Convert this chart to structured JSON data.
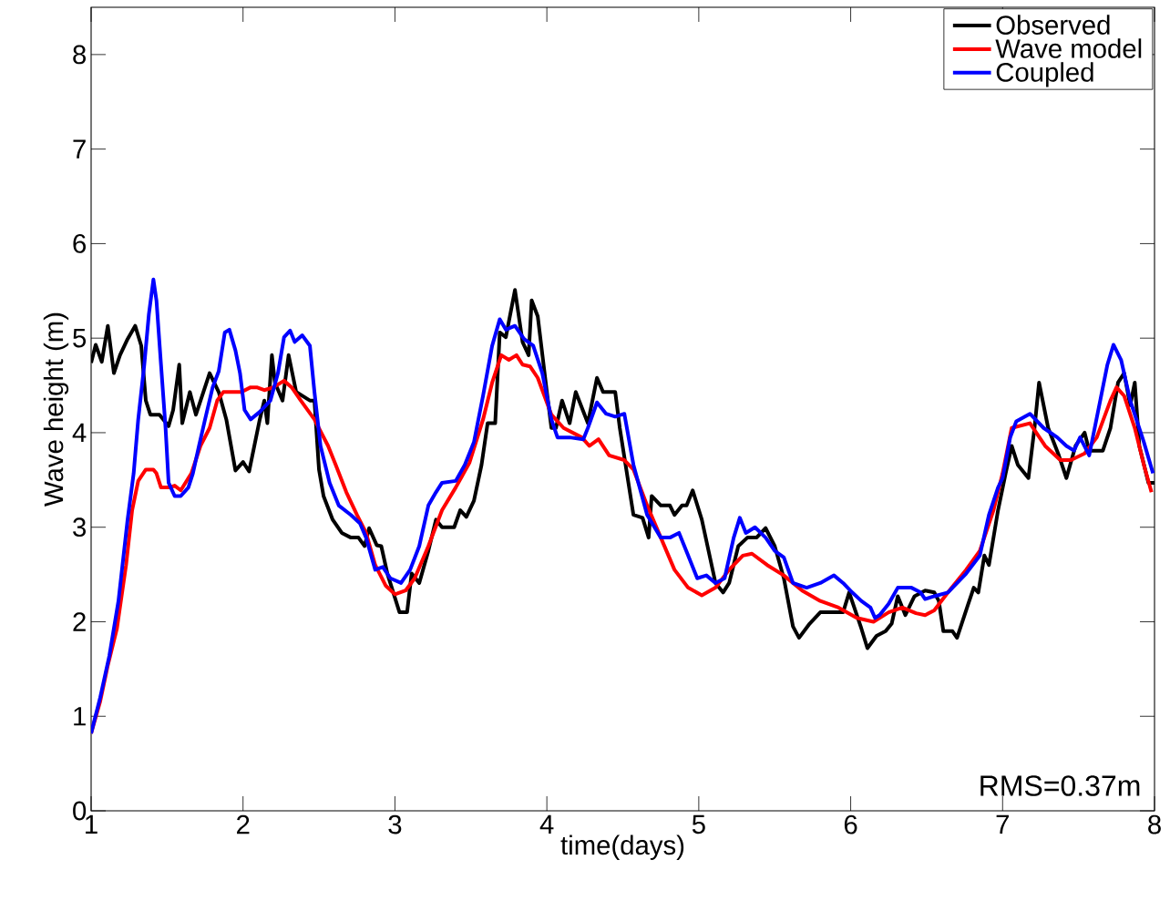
{
  "chart_data": {
    "type": "line",
    "xlabel": "time(days)",
    "ylabel": "Wave height (m)",
    "xlim": [
      1,
      8
    ],
    "ylim": [
      0,
      8.5
    ],
    "xticks": [
      1,
      2,
      3,
      4,
      5,
      6,
      7,
      8
    ],
    "yticks": [
      0,
      1,
      2,
      3,
      4,
      5,
      6,
      7,
      8
    ],
    "grid": false,
    "legend": "top right",
    "marker": "none",
    "line_style": "solid",
    "annotations": [
      "RMS=0.37m"
    ],
    "series": [
      {
        "name": "Observed",
        "color": "#000000",
        "x": [
          1.0,
          1.03,
          1.07,
          1.11,
          1.15,
          1.19,
          1.24,
          1.29,
          1.33,
          1.36,
          1.39,
          1.45,
          1.51,
          1.54,
          1.58,
          1.6,
          1.65,
          1.69,
          1.78,
          1.84,
          1.89,
          1.95,
          2.0,
          2.04,
          2.11,
          2.14,
          2.16,
          2.19,
          2.21,
          2.26,
          2.3,
          2.35,
          2.44,
          2.47,
          2.5,
          2.53,
          2.59,
          2.65,
          2.71,
          2.76,
          2.8,
          2.83,
          2.88,
          2.91,
          2.95,
          3.03,
          3.08,
          3.11,
          3.16,
          3.22,
          3.27,
          3.31,
          3.39,
          3.43,
          3.47,
          3.52,
          3.57,
          3.61,
          3.66,
          3.69,
          3.73,
          3.79,
          3.84,
          3.88,
          3.9,
          3.94,
          4.0,
          4.03,
          4.06,
          4.1,
          4.15,
          4.19,
          4.27,
          4.33,
          4.37,
          4.45,
          4.48,
          4.57,
          4.63,
          4.67,
          4.69,
          4.75,
          4.81,
          4.84,
          4.89,
          4.92,
          4.96,
          5.02,
          5.11,
          5.16,
          5.2,
          5.26,
          5.32,
          5.38,
          5.44,
          5.5,
          5.56,
          5.62,
          5.66,
          5.73,
          5.8,
          5.95,
          5.99,
          6.07,
          6.11,
          6.17,
          6.23,
          6.27,
          6.31,
          6.36,
          6.42,
          6.49,
          6.55,
          6.58,
          6.61,
          6.67,
          6.7,
          6.77,
          6.81,
          6.84,
          6.88,
          6.91,
          6.97,
          7.02,
          7.06,
          7.1,
          7.17,
          7.21,
          7.24,
          7.3,
          7.37,
          7.42,
          7.48,
          7.54,
          7.57,
          7.66,
          7.71,
          7.76,
          7.8,
          7.84,
          7.87,
          7.9,
          7.96,
          8.0
        ],
        "values": [
          4.74,
          4.93,
          4.75,
          5.13,
          4.63,
          4.82,
          4.99,
          5.13,
          4.92,
          4.34,
          4.19,
          4.19,
          4.07,
          4.24,
          4.72,
          4.1,
          4.43,
          4.19,
          4.63,
          4.43,
          4.14,
          3.6,
          3.69,
          3.59,
          4.14,
          4.34,
          4.1,
          4.82,
          4.53,
          4.34,
          4.82,
          4.43,
          4.34,
          4.34,
          3.61,
          3.33,
          3.08,
          2.94,
          2.89,
          2.89,
          2.8,
          2.99,
          2.81,
          2.8,
          2.51,
          2.1,
          2.1,
          2.51,
          2.41,
          2.75,
          3.08,
          3.0,
          3.0,
          3.18,
          3.11,
          3.28,
          3.66,
          4.1,
          4.1,
          5.06,
          5.01,
          5.51,
          4.96,
          4.82,
          5.4,
          5.23,
          4.43,
          4.05,
          4.05,
          4.34,
          4.1,
          4.43,
          4.1,
          4.58,
          4.43,
          4.43,
          4.05,
          3.13,
          3.1,
          2.89,
          3.33,
          3.23,
          3.23,
          3.13,
          3.23,
          3.23,
          3.39,
          3.08,
          2.41,
          2.31,
          2.41,
          2.8,
          2.89,
          2.89,
          2.99,
          2.8,
          2.46,
          1.95,
          1.83,
          1.98,
          2.1,
          2.1,
          2.31,
          1.93,
          1.72,
          1.85,
          1.9,
          1.98,
          2.27,
          2.07,
          2.27,
          2.33,
          2.31,
          2.22,
          1.9,
          1.9,
          1.83,
          2.17,
          2.36,
          2.31,
          2.7,
          2.6,
          3.18,
          3.57,
          3.86,
          3.66,
          3.52,
          4.05,
          4.53,
          4.05,
          3.76,
          3.52,
          3.86,
          4.0,
          3.81,
          3.81,
          4.05,
          4.53,
          4.63,
          4.29,
          4.53,
          3.86,
          3.47,
          3.47
        ]
      },
      {
        "name": "Wave model",
        "color": "#ff0000",
        "x": [
          1.0,
          1.06,
          1.11,
          1.17,
          1.23,
          1.27,
          1.31,
          1.36,
          1.41,
          1.43,
          1.46,
          1.51,
          1.55,
          1.59,
          1.66,
          1.72,
          1.78,
          1.83,
          1.87,
          1.99,
          2.05,
          2.09,
          2.14,
          2.2,
          2.27,
          2.32,
          2.38,
          2.47,
          2.56,
          2.61,
          2.68,
          2.75,
          2.81,
          2.87,
          2.94,
          3.0,
          3.07,
          3.13,
          3.22,
          3.31,
          3.4,
          3.49,
          3.58,
          3.64,
          3.7,
          3.75,
          3.8,
          3.84,
          3.89,
          3.94,
          4.03,
          4.11,
          4.23,
          4.28,
          4.34,
          4.41,
          4.51,
          4.57,
          4.66,
          4.75,
          4.84,
          4.93,
          5.02,
          5.11,
          5.2,
          5.29,
          5.35,
          5.45,
          5.56,
          5.68,
          5.8,
          5.92,
          6.04,
          6.15,
          6.25,
          6.34,
          6.43,
          6.49,
          6.55,
          6.64,
          6.76,
          6.85,
          6.94,
          7.0,
          7.06,
          7.18,
          7.28,
          7.38,
          7.45,
          7.54,
          7.62,
          7.71,
          7.75,
          7.8,
          7.87,
          7.93,
          7.98
        ],
        "values": [
          0.82,
          1.16,
          1.54,
          1.93,
          2.6,
          3.18,
          3.49,
          3.61,
          3.61,
          3.57,
          3.42,
          3.42,
          3.44,
          3.39,
          3.57,
          3.86,
          4.05,
          4.34,
          4.43,
          4.43,
          4.48,
          4.48,
          4.45,
          4.48,
          4.55,
          4.48,
          4.34,
          4.14,
          3.86,
          3.66,
          3.37,
          3.13,
          2.94,
          2.6,
          2.38,
          2.29,
          2.33,
          2.46,
          2.8,
          3.18,
          3.42,
          3.68,
          4.14,
          4.53,
          4.82,
          4.77,
          4.82,
          4.72,
          4.7,
          4.58,
          4.19,
          4.05,
          3.95,
          3.86,
          3.93,
          3.76,
          3.71,
          3.61,
          3.23,
          2.89,
          2.55,
          2.36,
          2.28,
          2.36,
          2.55,
          2.7,
          2.72,
          2.6,
          2.49,
          2.33,
          2.22,
          2.15,
          2.04,
          2.0,
          2.1,
          2.15,
          2.09,
          2.07,
          2.12,
          2.31,
          2.55,
          2.75,
          3.18,
          3.57,
          4.05,
          4.1,
          3.86,
          3.71,
          3.71,
          3.78,
          3.95,
          4.34,
          4.48,
          4.39,
          4.05,
          3.66,
          3.37
        ]
      },
      {
        "name": "Coupled",
        "color": "#0000ff",
        "x": [
          1.0,
          1.06,
          1.12,
          1.18,
          1.24,
          1.28,
          1.31,
          1.35,
          1.38,
          1.41,
          1.43,
          1.46,
          1.49,
          1.51,
          1.55,
          1.59,
          1.64,
          1.67,
          1.71,
          1.75,
          1.8,
          1.84,
          1.88,
          1.91,
          1.95,
          1.98,
          2.01,
          2.05,
          2.11,
          2.18,
          2.23,
          2.27,
          2.31,
          2.34,
          2.39,
          2.44,
          2.47,
          2.51,
          2.57,
          2.63,
          2.71,
          2.77,
          2.81,
          2.87,
          2.92,
          2.97,
          3.04,
          3.1,
          3.16,
          3.22,
          3.27,
          3.31,
          3.4,
          3.46,
          3.52,
          3.58,
          3.64,
          3.69,
          3.73,
          3.79,
          3.85,
          3.91,
          3.97,
          4.03,
          4.07,
          4.15,
          4.24,
          4.27,
          4.33,
          4.39,
          4.45,
          4.51,
          4.57,
          4.66,
          4.75,
          4.81,
          4.87,
          4.93,
          4.99,
          5.05,
          5.11,
          5.17,
          5.23,
          5.27,
          5.31,
          5.37,
          5.44,
          5.5,
          5.56,
          5.62,
          5.71,
          5.8,
          5.89,
          5.95,
          6.01,
          6.07,
          6.13,
          6.16,
          6.19,
          6.25,
          6.31,
          6.4,
          6.46,
          6.49,
          6.55,
          6.64,
          6.76,
          6.85,
          6.91,
          6.97,
          7.0,
          7.05,
          7.09,
          7.18,
          7.27,
          7.36,
          7.42,
          7.47,
          7.51,
          7.57,
          7.63,
          7.69,
          7.73,
          7.78,
          7.84,
          7.93,
          7.99
        ],
        "values": [
          0.82,
          1.2,
          1.64,
          2.22,
          3.08,
          3.57,
          4.14,
          4.72,
          5.25,
          5.62,
          5.4,
          4.72,
          4.05,
          3.47,
          3.33,
          3.33,
          3.42,
          3.57,
          3.86,
          4.14,
          4.48,
          4.65,
          5.06,
          5.09,
          4.87,
          4.63,
          4.24,
          4.14,
          4.22,
          4.34,
          4.63,
          5.01,
          5.08,
          4.96,
          5.03,
          4.92,
          4.43,
          3.86,
          3.47,
          3.23,
          3.13,
          3.04,
          2.89,
          2.55,
          2.58,
          2.46,
          2.41,
          2.55,
          2.8,
          3.23,
          3.37,
          3.47,
          3.49,
          3.66,
          3.9,
          4.39,
          4.92,
          5.2,
          5.09,
          5.13,
          4.99,
          4.92,
          4.63,
          4.14,
          3.95,
          3.95,
          3.93,
          4.05,
          4.32,
          4.2,
          4.17,
          4.2,
          3.66,
          3.13,
          2.89,
          2.89,
          2.94,
          2.7,
          2.46,
          2.49,
          2.41,
          2.46,
          2.89,
          3.1,
          2.94,
          3.0,
          2.89,
          2.75,
          2.68,
          2.41,
          2.36,
          2.41,
          2.49,
          2.41,
          2.31,
          2.22,
          2.15,
          2.04,
          2.07,
          2.19,
          2.36,
          2.36,
          2.31,
          2.24,
          2.27,
          2.31,
          2.51,
          2.7,
          3.13,
          3.42,
          3.52,
          3.95,
          4.12,
          4.2,
          4.05,
          3.95,
          3.86,
          3.81,
          3.95,
          3.76,
          4.24,
          4.72,
          4.93,
          4.77,
          4.34,
          3.9,
          3.57
        ]
      }
    ]
  }
}
